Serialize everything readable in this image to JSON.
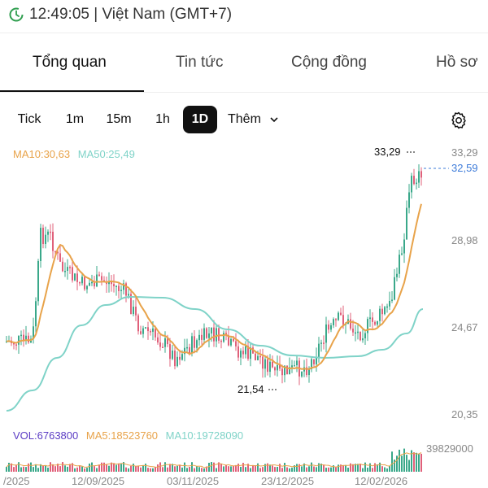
{
  "status_bar": {
    "time_text": "12:49:05 | Việt Nam (GMT+7)",
    "icon": "clock-refresh-icon"
  },
  "tabs": [
    {
      "label": "Tổng quan",
      "active": true
    },
    {
      "label": "Tin tức",
      "active": false
    },
    {
      "label": "Cộng đồng",
      "active": false
    },
    {
      "label": "Hồ sơ",
      "active": false
    }
  ],
  "timeframes": [
    {
      "label": "Tick",
      "active": false
    },
    {
      "label": "1m",
      "active": false
    },
    {
      "label": "15m",
      "active": false
    },
    {
      "label": "1h",
      "active": false
    },
    {
      "label": "1D",
      "active": true
    }
  ],
  "more_label": "Thêm",
  "settings_icon": "gear-icon",
  "colors": {
    "up": "#3aa88a",
    "down": "#e0607a",
    "ma10": "#e8a34a",
    "ma50": "#7fd3c8",
    "vol_legend": "#5b3cc4",
    "last_price": "#3d7bd9"
  },
  "chart_data": {
    "type": "candlestick",
    "price_axis_labels": [
      "33,29",
      "28,98",
      "24,67",
      "20,35"
    ],
    "date_axis_labels": [
      "/2025",
      "12/09/2025",
      "03/11/2025",
      "23/12/2025",
      "12/02/2026"
    ],
    "last_price": "32,59",
    "high_marker": "33,29",
    "low_marker": "21,54",
    "ma_legend": {
      "ma10": "MA10:30,63",
      "ma50": "MA50:25,49"
    },
    "vol_legend": {
      "vol": "VOL:6763800",
      "ma5": "MA5:18523760",
      "ma10": "MA10:19728090"
    },
    "vol_axis_max": "39829000",
    "ylim": [
      20.35,
      33.29
    ]
  }
}
